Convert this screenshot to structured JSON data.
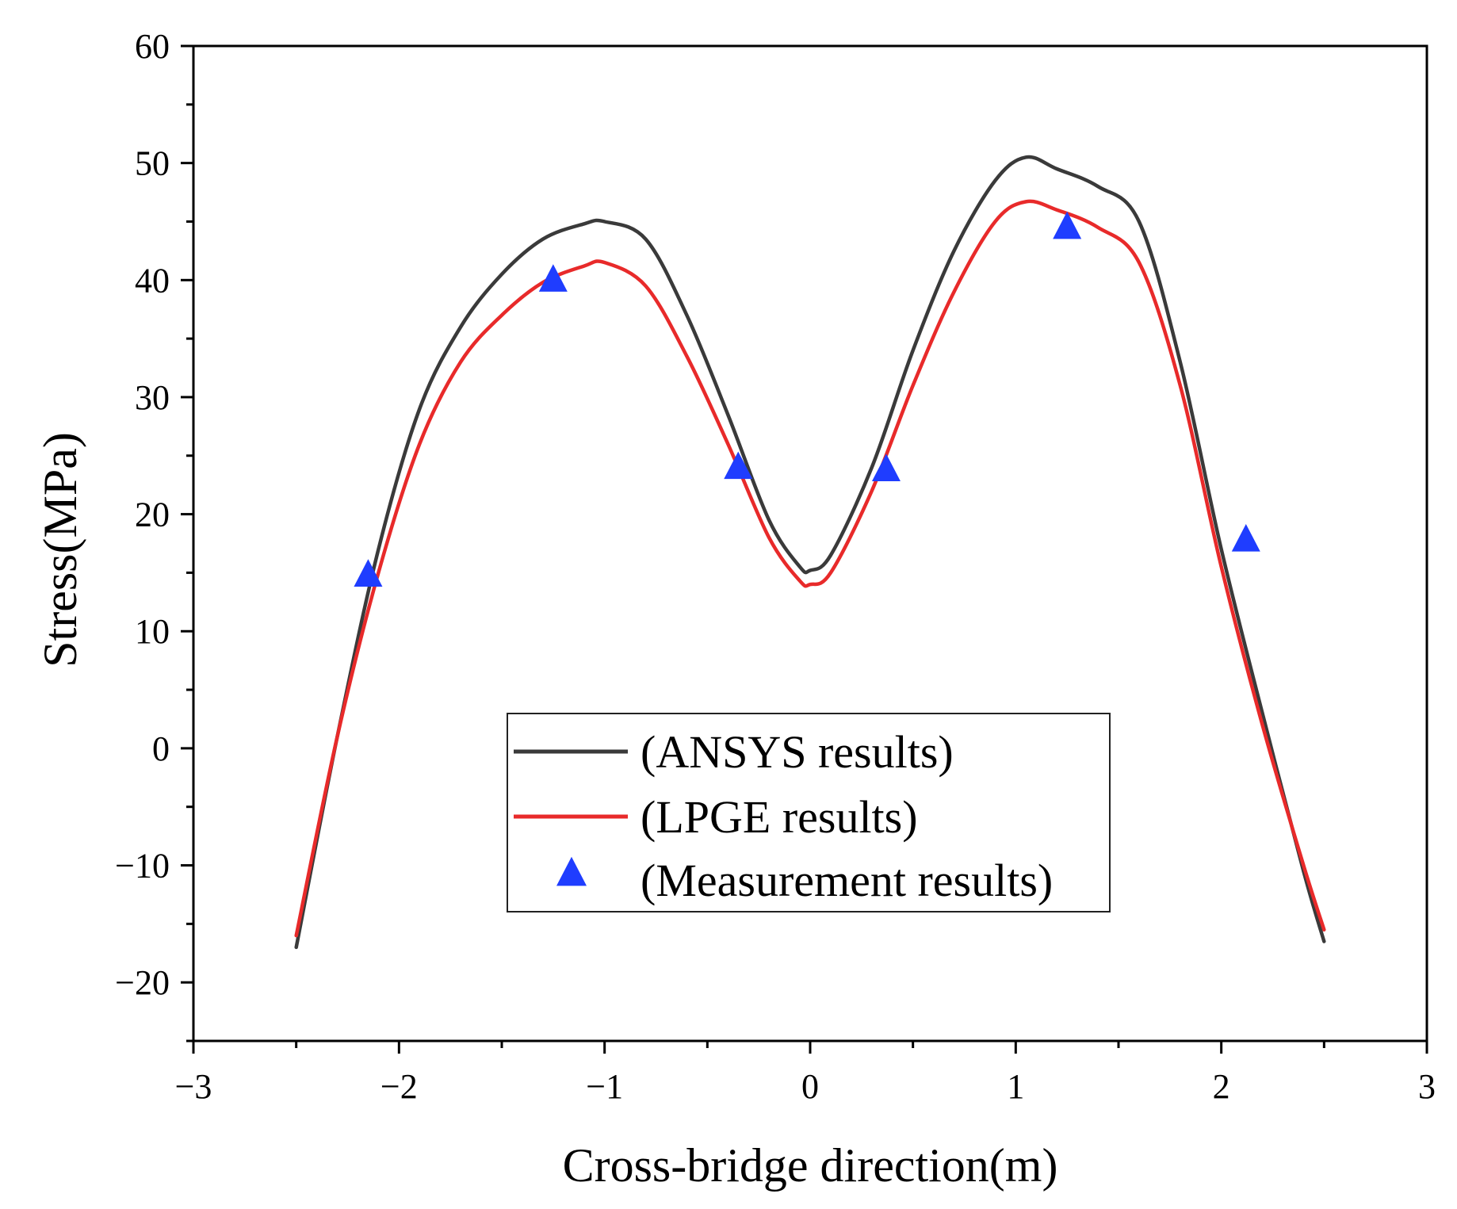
{
  "chart_data": {
    "type": "line",
    "title": "",
    "xlabel": "Cross-bridge direction(m)",
    "ylabel": "Stress(MPa)",
    "xlim": [
      -3,
      3
    ],
    "ylim": [
      -25,
      60
    ],
    "xticks": [
      -3,
      -2,
      -1,
      0,
      1,
      2,
      3
    ],
    "xtick_labels": [
      "−3",
      "−2",
      "−1",
      "0",
      "1",
      "2",
      "3"
    ],
    "yticks": [
      -20,
      -10,
      0,
      10,
      20,
      30,
      40,
      50,
      60
    ],
    "ytick_labels": [
      "−20",
      "−10",
      "0",
      "10",
      "20",
      "30",
      "40",
      "50",
      "60"
    ],
    "grid": false,
    "legend_position": "bottom-center",
    "series": [
      {
        "name": "(ANSYS results)",
        "kind": "line",
        "color": "#3a3a3a",
        "x": [
          -2.5,
          -2.3,
          -2.1,
          -1.9,
          -1.7,
          -1.5,
          -1.3,
          -1.1,
          -1.0,
          -0.8,
          -0.6,
          -0.4,
          -0.2,
          -0.05,
          0.0,
          0.1,
          0.3,
          0.5,
          0.7,
          0.9,
          1.05,
          1.2,
          1.4,
          1.6,
          1.8,
          2.0,
          2.2,
          2.4,
          2.5
        ],
        "values": [
          -17,
          1,
          17,
          29,
          36,
          40.5,
          43.5,
          44.8,
          45,
          43.5,
          37,
          28.5,
          19.5,
          15.5,
          15.2,
          16.5,
          24,
          34,
          42.5,
          48.5,
          50.5,
          49.5,
          48,
          45,
          33,
          17,
          3,
          -10.5,
          -16.5
        ]
      },
      {
        "name": "(LPGE results)",
        "kind": "line",
        "color": "#e82a2a",
        "x": [
          -2.5,
          -2.3,
          -2.1,
          -1.9,
          -1.7,
          -1.5,
          -1.3,
          -1.1,
          -1.0,
          -0.8,
          -0.6,
          -0.4,
          -0.2,
          -0.05,
          0.0,
          0.1,
          0.3,
          0.5,
          0.7,
          0.9,
          1.05,
          1.2,
          1.4,
          1.6,
          1.8,
          2.0,
          2.2,
          2.4,
          2.5
        ],
        "values": [
          -16,
          1,
          15,
          26,
          33,
          37,
          39.8,
          41.2,
          41.5,
          39.5,
          33.5,
          26,
          18,
          14.3,
          14,
          15,
          22,
          31,
          39,
          45,
          46.7,
          46,
          44.5,
          41.5,
          31,
          15.5,
          2,
          -10,
          -15.5
        ]
      },
      {
        "name": "(Measurement results)",
        "kind": "scatter",
        "marker": "triangle",
        "color": "#1f3dff",
        "x": [
          -2.15,
          -1.25,
          -0.35,
          0.37,
          1.25,
          2.12
        ],
        "values": [
          14.8,
          40,
          24,
          23.8,
          44.5,
          17.8
        ]
      }
    ]
  }
}
